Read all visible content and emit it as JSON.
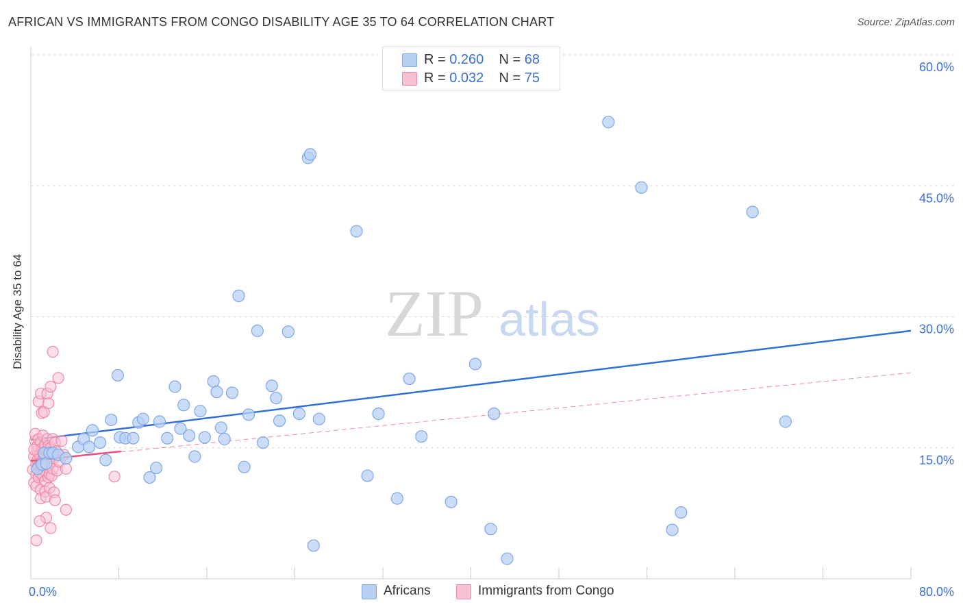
{
  "header": {
    "title": "AFRICAN VS IMMIGRANTS FROM CONGO DISABILITY AGE 35 TO 64 CORRELATION CHART",
    "source": "Source: ZipAtlas.com"
  },
  "watermark": {
    "zip": "ZIP",
    "atlas": "atlas"
  },
  "legend_top": {
    "rows": [
      {
        "r_label": "R =",
        "r_value": "0.260",
        "n_label": "N =",
        "n_value": "68"
      },
      {
        "r_label": "R =",
        "r_value": "0.032",
        "n_label": "N =",
        "n_value": "75"
      }
    ]
  },
  "legend_bottom": {
    "africans": "Africans",
    "congo": "Immigrants from Congo"
  },
  "colors": {
    "africans_fill": "#b8d0f4",
    "africans_stroke": "#7ea7e6",
    "africans_line": "#2f6fd6",
    "congo_fill": "#f8c2d3",
    "congo_stroke": "#ef88a8",
    "congo_line": "#e8537e",
    "tick_text": "#3a6fd8",
    "grid": "#d8d8d8"
  },
  "chart_data": {
    "type": "scatter",
    "title": "AFRICAN VS IMMIGRANTS FROM CONGO DISABILITY AGE 35 TO 64 CORRELATION CHART",
    "xlabel": "",
    "ylabel": "Disability Age 35 to 64",
    "xlim": [
      0,
      80
    ],
    "ylim": [
      0,
      60
    ],
    "x_tick_labels": [
      "0.0%",
      "80.0%"
    ],
    "y_ticks": [
      15,
      30,
      45,
      60
    ],
    "y_tick_labels": [
      "15.0%",
      "30.0%",
      "45.0%",
      "60.0%"
    ],
    "series": [
      {
        "name": "Africans",
        "r": 0.26,
        "n": 68,
        "trend": {
          "x": [
            0,
            80
          ],
          "y": [
            15.9,
            28.4
          ],
          "style": "solid"
        },
        "points": [
          [
            0.6,
            12.6
          ],
          [
            1.0,
            13.1
          ],
          [
            1.2,
            14.4
          ],
          [
            1.4,
            13.2
          ],
          [
            1.7,
            14.4
          ],
          [
            2.0,
            14.4
          ],
          [
            2.5,
            14.2
          ],
          [
            3.2,
            13.8
          ],
          [
            4.3,
            15.1
          ],
          [
            4.8,
            16.0
          ],
          [
            5.3,
            15.1
          ],
          [
            5.6,
            17.0
          ],
          [
            6.3,
            15.6
          ],
          [
            6.8,
            13.6
          ],
          [
            7.3,
            18.2
          ],
          [
            7.9,
            23.3
          ],
          [
            8.1,
            16.2
          ],
          [
            8.6,
            16.1
          ],
          [
            9.3,
            16.1
          ],
          [
            9.8,
            17.9
          ],
          [
            10.2,
            18.3
          ],
          [
            10.8,
            11.6
          ],
          [
            11.4,
            12.7
          ],
          [
            11.7,
            18.0
          ],
          [
            12.4,
            16.1
          ],
          [
            13.1,
            22.0
          ],
          [
            13.6,
            17.2
          ],
          [
            13.9,
            19.9
          ],
          [
            14.4,
            16.4
          ],
          [
            14.9,
            14.0
          ],
          [
            15.4,
            19.2
          ],
          [
            15.8,
            16.2
          ],
          [
            16.6,
            22.6
          ],
          [
            16.9,
            21.4
          ],
          [
            17.3,
            17.3
          ],
          [
            17.6,
            16.0
          ],
          [
            18.3,
            21.3
          ],
          [
            18.9,
            32.4
          ],
          [
            19.4,
            12.8
          ],
          [
            19.8,
            18.8
          ],
          [
            20.6,
            28.4
          ],
          [
            21.1,
            15.6
          ],
          [
            21.9,
            22.1
          ],
          [
            22.3,
            20.7
          ],
          [
            22.6,
            18.1
          ],
          [
            23.4,
            28.3
          ],
          [
            24.4,
            18.9
          ],
          [
            25.2,
            48.2
          ],
          [
            25.4,
            48.6
          ],
          [
            25.7,
            3.8
          ],
          [
            26.2,
            18.3
          ],
          [
            29.6,
            39.8
          ],
          [
            30.6,
            11.8
          ],
          [
            31.6,
            18.9
          ],
          [
            33.3,
            9.2
          ],
          [
            34.4,
            22.9
          ],
          [
            35.5,
            16.3
          ],
          [
            38.2,
            8.8
          ],
          [
            40.4,
            24.6
          ],
          [
            41.8,
            5.7
          ],
          [
            42.1,
            18.9
          ],
          [
            43.3,
            2.3
          ],
          [
            52.5,
            52.3
          ],
          [
            55.5,
            44.8
          ],
          [
            58.3,
            5.6
          ],
          [
            59.1,
            7.6
          ],
          [
            65.6,
            42.0
          ],
          [
            68.6,
            18.0
          ]
        ]
      },
      {
        "name": "Immigrants from Congo",
        "r": 0.032,
        "n": 75,
        "trend_solid": {
          "x": [
            0,
            8.2
          ],
          "y": [
            13.5,
            14.6
          ]
        },
        "trend_dashed": {
          "x": [
            0,
            80
          ],
          "y": [
            13.5,
            23.6
          ]
        },
        "points": [
          [
            0.2,
            12.5
          ],
          [
            0.3,
            14.0
          ],
          [
            0.3,
            11.0
          ],
          [
            0.4,
            15.8
          ],
          [
            0.4,
            16.6
          ],
          [
            0.5,
            13.2
          ],
          [
            0.5,
            12.0
          ],
          [
            0.5,
            10.6
          ],
          [
            0.6,
            14.6
          ],
          [
            0.6,
            13.6
          ],
          [
            0.6,
            15.2
          ],
          [
            0.7,
            12.9
          ],
          [
            0.7,
            11.6
          ],
          [
            0.7,
            16.0
          ],
          [
            0.7,
            20.3
          ],
          [
            0.8,
            14.2
          ],
          [
            0.8,
            13.0
          ],
          [
            0.8,
            12.2
          ],
          [
            0.9,
            15.6
          ],
          [
            0.9,
            10.2
          ],
          [
            0.9,
            9.2
          ],
          [
            0.9,
            21.2
          ],
          [
            1.0,
            14.8
          ],
          [
            1.0,
            13.4
          ],
          [
            1.0,
            12.6
          ],
          [
            1.0,
            19.0
          ],
          [
            1.1,
            15.0
          ],
          [
            1.1,
            11.8
          ],
          [
            1.1,
            16.4
          ],
          [
            1.2,
            14.0
          ],
          [
            1.2,
            12.4
          ],
          [
            1.2,
            13.8
          ],
          [
            1.2,
            19.1
          ],
          [
            1.3,
            15.4
          ],
          [
            1.3,
            11.2
          ],
          [
            1.3,
            10.0
          ],
          [
            1.4,
            13.0
          ],
          [
            1.4,
            14.6
          ],
          [
            1.4,
            9.4
          ],
          [
            1.4,
            7.0
          ],
          [
            1.5,
            12.8
          ],
          [
            1.5,
            13.6
          ],
          [
            1.5,
            16.0
          ],
          [
            1.5,
            21.2
          ],
          [
            1.6,
            15.2
          ],
          [
            1.6,
            11.6
          ],
          [
            1.6,
            20.1
          ],
          [
            1.7,
            14.2
          ],
          [
            1.7,
            12.0
          ],
          [
            1.7,
            10.4
          ],
          [
            1.8,
            13.2
          ],
          [
            1.8,
            15.0
          ],
          [
            1.8,
            22.0
          ],
          [
            1.8,
            5.8
          ],
          [
            1.9,
            14.4
          ],
          [
            1.9,
            11.8
          ],
          [
            2.0,
            12.6
          ],
          [
            2.0,
            16.0
          ],
          [
            2.0,
            26.0
          ],
          [
            2.1,
            13.8
          ],
          [
            2.1,
            9.9
          ],
          [
            2.2,
            15.6
          ],
          [
            2.3,
            14.6
          ],
          [
            2.4,
            12.4
          ],
          [
            2.5,
            23.0
          ],
          [
            2.6,
            13.4
          ],
          [
            2.8,
            15.8
          ],
          [
            3.0,
            14.2
          ],
          [
            3.2,
            12.6
          ],
          [
            2.2,
            9.0
          ],
          [
            0.5,
            4.4
          ],
          [
            0.8,
            6.6
          ],
          [
            0.3,
            14.8
          ],
          [
            3.2,
            7.9
          ],
          [
            7.6,
            11.7
          ]
        ]
      }
    ]
  }
}
